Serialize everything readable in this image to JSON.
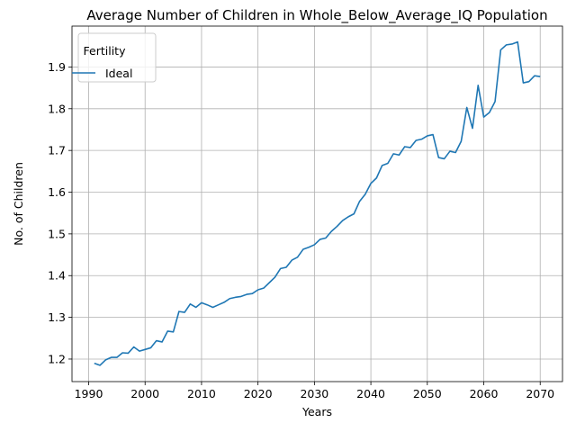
{
  "chart_data": {
    "type": "line",
    "title": "Average Number of Children in Whole_Below_Average_IQ Population",
    "xlabel": "Years",
    "ylabel": "No. of Children",
    "xlim": [
      1987.05,
      2073.95
    ],
    "ylim": [
      1.146,
      1.998
    ],
    "xticks": [
      1990,
      2000,
      2010,
      2020,
      2030,
      2040,
      2050,
      2060,
      2070
    ],
    "yticks": [
      1.2,
      1.3,
      1.4,
      1.5,
      1.6,
      1.7,
      1.8,
      1.9
    ],
    "grid": true,
    "legend": {
      "title": "Fertility",
      "position": "top-left"
    },
    "series": [
      {
        "name": "Ideal",
        "color": "#1f77b4",
        "x": [
          1991,
          1992,
          1993,
          1994,
          1995,
          1996,
          1997,
          1998,
          1999,
          2000,
          2001,
          2002,
          2003,
          2004,
          2005,
          2006,
          2007,
          2008,
          2009,
          2010,
          2011,
          2012,
          2013,
          2014,
          2015,
          2016,
          2017,
          2018,
          2019,
          2020,
          2021,
          2022,
          2023,
          2024,
          2025,
          2026,
          2027,
          2028,
          2029,
          2030,
          2031,
          2032,
          2033,
          2034,
          2035,
          2036,
          2037,
          2038,
          2039,
          2040,
          2041,
          2042,
          2043,
          2044,
          2045,
          2046,
          2047,
          2048,
          2049,
          2050,
          2051,
          2052,
          2053,
          2054,
          2055,
          2056,
          2057,
          2058,
          2059,
          2060,
          2061,
          2062,
          2063,
          2064,
          2065,
          2066,
          2067,
          2068,
          2069,
          2070
        ],
        "values": [
          1.19,
          1.185,
          1.198,
          1.204,
          1.204,
          1.215,
          1.214,
          1.229,
          1.219,
          1.223,
          1.227,
          1.244,
          1.241,
          1.267,
          1.265,
          1.314,
          1.312,
          1.332,
          1.324,
          1.335,
          1.33,
          1.324,
          1.33,
          1.336,
          1.345,
          1.348,
          1.35,
          1.355,
          1.357,
          1.366,
          1.37,
          1.383,
          1.396,
          1.417,
          1.42,
          1.437,
          1.444,
          1.463,
          1.468,
          1.474,
          1.487,
          1.49,
          1.506,
          1.518,
          1.532,
          1.541,
          1.548,
          1.578,
          1.595,
          1.621,
          1.634,
          1.664,
          1.669,
          1.692,
          1.689,
          1.709,
          1.707,
          1.724,
          1.727,
          1.735,
          1.738,
          1.683,
          1.68,
          1.698,
          1.695,
          1.722,
          1.803,
          1.753,
          1.856,
          1.78,
          1.791,
          1.817,
          1.941,
          1.953,
          1.955,
          1.96,
          1.862,
          1.865,
          1.879,
          1.877
        ]
      }
    ]
  }
}
